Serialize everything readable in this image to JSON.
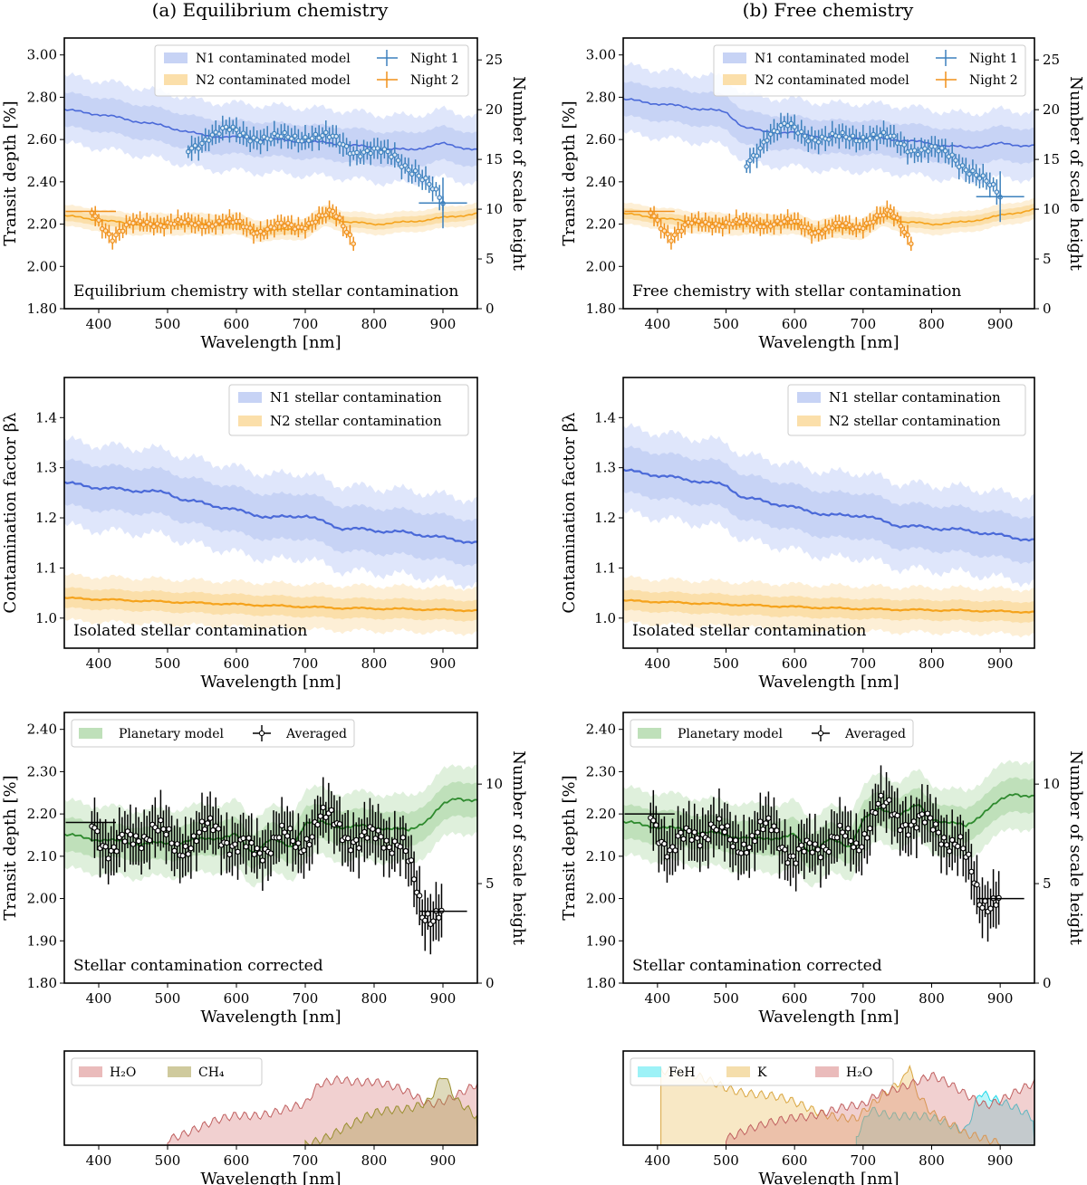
{
  "column_titles": [
    "(a) Equilibrium chemistry",
    "(b) Free chemistry"
  ],
  "chart_data": [
    {
      "id": "a_transit",
      "type": "line",
      "title": "Equilibrium chemistry with stellar contamination",
      "xlabel": "Wavelength [nm]",
      "ylabel": "Transit depth [%]",
      "y2label": "Number of scale height",
      "xlim": [
        350,
        950
      ],
      "ylim": [
        1.8,
        3.08
      ],
      "y2lim": [
        0,
        27.2
      ],
      "xticks": [
        400,
        500,
        600,
        700,
        800,
        900
      ],
      "yticks": [
        "1.80",
        "2.00",
        "2.20",
        "2.40",
        "2.60",
        "2.80",
        "3.00"
      ],
      "y2ticks": [
        0,
        5,
        10,
        15,
        20,
        25
      ],
      "legend": [
        "N1 contaminated model",
        "N2 contaminated model",
        "Night 1",
        "Night 2"
      ],
      "series": [
        {
          "name": "N1 contaminated model",
          "x": [
            350,
            400,
            450,
            500,
            525,
            550,
            600,
            650,
            700,
            750,
            800,
            850,
            900,
            950
          ],
          "values": [
            2.74,
            2.72,
            2.69,
            2.66,
            2.64,
            2.62,
            2.61,
            2.6,
            2.59,
            2.58,
            2.56,
            2.55,
            2.58,
            2.55
          ]
        },
        {
          "name": "N2 contaminated model",
          "x": [
            350,
            400,
            450,
            500,
            550,
            600,
            630,
            650,
            700,
            730,
            760,
            800,
            850,
            900,
            950
          ],
          "values": [
            2.24,
            2.22,
            2.2,
            2.2,
            2.2,
            2.2,
            2.17,
            2.17,
            2.18,
            2.24,
            2.21,
            2.2,
            2.21,
            2.23,
            2.25
          ]
        },
        {
          "name": "Night 1",
          "x": [
            530,
            560,
            590,
            620,
            650,
            680,
            710,
            740,
            770,
            800,
            830,
            860,
            900
          ],
          "values": [
            2.55,
            2.62,
            2.64,
            2.62,
            2.6,
            2.61,
            2.62,
            2.6,
            2.55,
            2.54,
            2.52,
            2.45,
            2.3
          ]
        },
        {
          "name": "Night 2",
          "x": [
            390,
            420,
            450,
            480,
            510,
            540,
            570,
            600,
            630,
            660,
            690,
            720,
            740,
            770
          ],
          "values": [
            2.26,
            2.14,
            2.2,
            2.21,
            2.2,
            2.2,
            2.21,
            2.2,
            2.17,
            2.19,
            2.18,
            2.24,
            2.25,
            2.12
          ]
        }
      ]
    },
    {
      "id": "b_transit",
      "type": "line",
      "title": "Free chemistry with stellar contamination",
      "xlabel": "Wavelength [nm]",
      "ylabel": "Transit depth [%]",
      "y2label": "Number of scale height",
      "xlim": [
        350,
        950
      ],
      "ylim": [
        1.8,
        3.08
      ],
      "y2lim": [
        0,
        27.2
      ],
      "xticks": [
        400,
        500,
        600,
        700,
        800,
        900
      ],
      "yticks": [
        "1.80",
        "2.00",
        "2.20",
        "2.40",
        "2.60",
        "2.80",
        "3.00"
      ],
      "y2ticks": [
        0,
        5,
        10,
        15,
        20,
        25
      ],
      "legend": [
        "N1 contaminated model",
        "N2 contaminated model",
        "Night 1",
        "Night 2"
      ],
      "series": [
        {
          "name": "N1 contaminated model",
          "x": [
            350,
            400,
            450,
            500,
            525,
            550,
            600,
            650,
            700,
            750,
            800,
            850,
            900,
            950
          ],
          "values": [
            2.79,
            2.77,
            2.75,
            2.73,
            2.66,
            2.64,
            2.63,
            2.61,
            2.61,
            2.6,
            2.58,
            2.56,
            2.58,
            2.57
          ]
        },
        {
          "name": "N2 contaminated model",
          "x": [
            350,
            400,
            450,
            500,
            550,
            600,
            630,
            650,
            700,
            730,
            760,
            800,
            850,
            900,
            950
          ],
          "values": [
            2.25,
            2.23,
            2.21,
            2.2,
            2.2,
            2.2,
            2.17,
            2.18,
            2.18,
            2.24,
            2.21,
            2.2,
            2.21,
            2.24,
            2.27
          ]
        },
        {
          "name": "Night 1",
          "x": [
            530,
            560,
            590,
            620,
            650,
            680,
            710,
            740,
            770,
            800,
            830,
            860,
            900
          ],
          "values": [
            2.48,
            2.62,
            2.66,
            2.62,
            2.6,
            2.61,
            2.62,
            2.6,
            2.56,
            2.55,
            2.52,
            2.45,
            2.33
          ]
        },
        {
          "name": "Night 2",
          "x": [
            390,
            420,
            450,
            480,
            510,
            540,
            570,
            600,
            630,
            660,
            690,
            720,
            740,
            770
          ],
          "values": [
            2.26,
            2.14,
            2.2,
            2.21,
            2.2,
            2.2,
            2.21,
            2.2,
            2.17,
            2.19,
            2.18,
            2.24,
            2.25,
            2.12
          ]
        }
      ]
    },
    {
      "id": "a_contam",
      "type": "line",
      "title": "Isolated stellar contamination",
      "xlabel": "Wavelength [nm]",
      "ylabel": "Contamination factor βλ",
      "xlim": [
        350,
        950
      ],
      "ylim": [
        0.94,
        1.48
      ],
      "xticks": [
        400,
        500,
        600,
        700,
        800,
        900
      ],
      "yticks": [
        "1.0",
        "1.1",
        "1.2",
        "1.3",
        "1.4"
      ],
      "legend": [
        "N1 stellar contamination",
        "N2 stellar contamination"
      ],
      "series": [
        {
          "name": "N1 stellar contamination",
          "x": [
            350,
            400,
            450,
            500,
            525,
            550,
            600,
            650,
            700,
            750,
            800,
            850,
            900,
            950
          ],
          "values": [
            1.27,
            1.26,
            1.255,
            1.25,
            1.235,
            1.23,
            1.215,
            1.2,
            1.205,
            1.18,
            1.175,
            1.17,
            1.16,
            1.15
          ]
        },
        {
          "name": "N2 stellar contamination",
          "x": [
            350,
            450,
            550,
            650,
            750,
            850,
            950
          ],
          "values": [
            1.04,
            1.035,
            1.03,
            1.025,
            1.02,
            1.018,
            1.015
          ]
        }
      ]
    },
    {
      "id": "b_contam",
      "type": "line",
      "title": "Isolated stellar contamination",
      "xlabel": "Wavelength [nm]",
      "ylabel": "Contamination factor βλ",
      "xlim": [
        350,
        950
      ],
      "ylim": [
        0.94,
        1.48
      ],
      "xticks": [
        400,
        500,
        600,
        700,
        800,
        900
      ],
      "yticks": [
        "1.0",
        "1.1",
        "1.2",
        "1.3",
        "1.4"
      ],
      "legend": [
        "N1 stellar contamination",
        "N2 stellar contamination"
      ],
      "series": [
        {
          "name": "N1 stellar contamination",
          "x": [
            350,
            400,
            450,
            500,
            525,
            550,
            600,
            650,
            700,
            750,
            800,
            850,
            900,
            950
          ],
          "values": [
            1.295,
            1.285,
            1.275,
            1.265,
            1.24,
            1.235,
            1.22,
            1.205,
            1.205,
            1.185,
            1.18,
            1.175,
            1.165,
            1.155
          ]
        },
        {
          "name": "N2 stellar contamination",
          "x": [
            350,
            450,
            550,
            650,
            750,
            850,
            950
          ],
          "values": [
            1.035,
            1.03,
            1.025,
            1.02,
            1.017,
            1.015,
            1.012
          ]
        }
      ]
    },
    {
      "id": "a_corrected",
      "type": "line",
      "title": "Stellar contamination corrected",
      "xlabel": "Wavelength [nm]",
      "ylabel": "Transit depth [%]",
      "y2label": "Number of scale height",
      "xlim": [
        350,
        950
      ],
      "ylim": [
        1.8,
        2.44
      ],
      "y2lim": [
        0,
        13.6
      ],
      "xticks": [
        400,
        500,
        600,
        700,
        800,
        900
      ],
      "yticks": [
        "1.80",
        "1.90",
        "2.00",
        "2.10",
        "2.20",
        "2.30",
        "2.40"
      ],
      "y2ticks": [
        0,
        5,
        10
      ],
      "legend": [
        "Planetary model",
        "Averaged"
      ],
      "series": [
        {
          "name": "Planetary model",
          "x": [
            350,
            400,
            450,
            500,
            550,
            600,
            620,
            650,
            680,
            700,
            720,
            750,
            800,
            850,
            880,
            900,
            920,
            950
          ],
          "values": [
            2.15,
            2.14,
            2.13,
            2.13,
            2.14,
            2.15,
            2.11,
            2.14,
            2.12,
            2.18,
            2.18,
            2.17,
            2.17,
            2.16,
            2.19,
            2.22,
            2.24,
            2.23
          ]
        },
        {
          "name": "Averaged",
          "x": [
            390,
            420,
            450,
            480,
            510,
            540,
            570,
            600,
            630,
            660,
            690,
            720,
            750,
            780,
            810,
            840,
            870,
            900
          ],
          "values": [
            2.18,
            2.11,
            2.14,
            2.17,
            2.12,
            2.14,
            2.17,
            2.12,
            2.11,
            2.15,
            2.12,
            2.19,
            2.17,
            2.13,
            2.15,
            2.13,
            1.97,
            1.97
          ]
        }
      ]
    },
    {
      "id": "b_corrected",
      "type": "line",
      "title": "Stellar contamination corrected",
      "xlabel": "Wavelength [nm]",
      "ylabel": "Transit depth [%]",
      "y2label": "Number of scale height",
      "xlim": [
        350,
        950
      ],
      "ylim": [
        1.8,
        2.44
      ],
      "y2lim": [
        0,
        13.6
      ],
      "xticks": [
        400,
        500,
        600,
        700,
        800,
        900
      ],
      "yticks": [
        "1.80",
        "1.90",
        "2.00",
        "2.10",
        "2.20",
        "2.30",
        "2.40"
      ],
      "y2ticks": [
        0,
        5,
        10
      ],
      "legend": [
        "Planetary model",
        "Averaged"
      ],
      "series": [
        {
          "name": "Planetary model",
          "x": [
            350,
            400,
            450,
            500,
            550,
            600,
            620,
            650,
            680,
            700,
            720,
            750,
            780,
            800,
            850,
            880,
            900,
            920,
            950
          ],
          "values": [
            2.18,
            2.17,
            2.16,
            2.15,
            2.14,
            2.15,
            2.11,
            2.14,
            2.12,
            2.19,
            2.21,
            2.2,
            2.22,
            2.19,
            2.17,
            2.21,
            2.23,
            2.25,
            2.24
          ]
        },
        {
          "name": "Averaged",
          "x": [
            390,
            420,
            450,
            480,
            510,
            540,
            570,
            600,
            630,
            660,
            690,
            720,
            750,
            780,
            810,
            840,
            870,
            900
          ],
          "values": [
            2.2,
            2.11,
            2.15,
            2.17,
            2.13,
            2.14,
            2.17,
            2.09,
            2.12,
            2.15,
            2.12,
            2.22,
            2.19,
            2.18,
            2.16,
            2.13,
            2.0,
            2.0
          ]
        }
      ]
    },
    {
      "id": "a_species",
      "type": "area",
      "title": "",
      "xlabel": "Wavelength [nm]",
      "xlim": [
        350,
        950
      ],
      "xticks": [
        400,
        500,
        600,
        700,
        800,
        900
      ],
      "legend": [
        "H₂O",
        "CH₄"
      ],
      "series": [
        {
          "name": "H₂O",
          "x": [
            500,
            550,
            600,
            650,
            700,
            720,
            750,
            800,
            850,
            880,
            900,
            950
          ],
          "values": [
            0.1,
            0.2,
            0.35,
            0.4,
            0.45,
            0.7,
            0.8,
            0.75,
            0.6,
            0.5,
            0.55,
            0.7
          ]
        },
        {
          "name": "CH₄",
          "x": [
            700,
            750,
            800,
            850,
            880,
            900,
            920,
            950
          ],
          "values": [
            0.0,
            0.2,
            0.35,
            0.45,
            0.55,
            0.85,
            0.5,
            0.3
          ]
        }
      ]
    },
    {
      "id": "b_species",
      "type": "area",
      "title": "",
      "xlabel": "Wavelength [nm]",
      "xlim": [
        350,
        950
      ],
      "xticks": [
        400,
        500,
        600,
        700,
        800,
        900
      ],
      "legend": [
        "FeH",
        "K",
        "H₂O"
      ],
      "series": [
        {
          "name": "FeH",
          "x": [
            690,
            710,
            750,
            800,
            850,
            870,
            900,
            950
          ],
          "values": [
            0.1,
            0.45,
            0.35,
            0.3,
            0.2,
            0.65,
            0.5,
            0.3
          ]
        },
        {
          "name": "K",
          "x": [
            405,
            690,
            720,
            760,
            768,
            775,
            800,
            850,
            900
          ],
          "values": [
            0.9,
            0.3,
            0.5,
            0.8,
            1.0,
            0.7,
            0.4,
            0.1,
            0.05
          ]
        },
        {
          "name": "H₂O",
          "x": [
            500,
            550,
            600,
            650,
            700,
            720,
            750,
            800,
            850,
            880,
            900,
            950
          ],
          "values": [
            0.1,
            0.2,
            0.35,
            0.4,
            0.45,
            0.6,
            0.7,
            0.8,
            0.6,
            0.5,
            0.55,
            0.7
          ]
        }
      ]
    }
  ]
}
